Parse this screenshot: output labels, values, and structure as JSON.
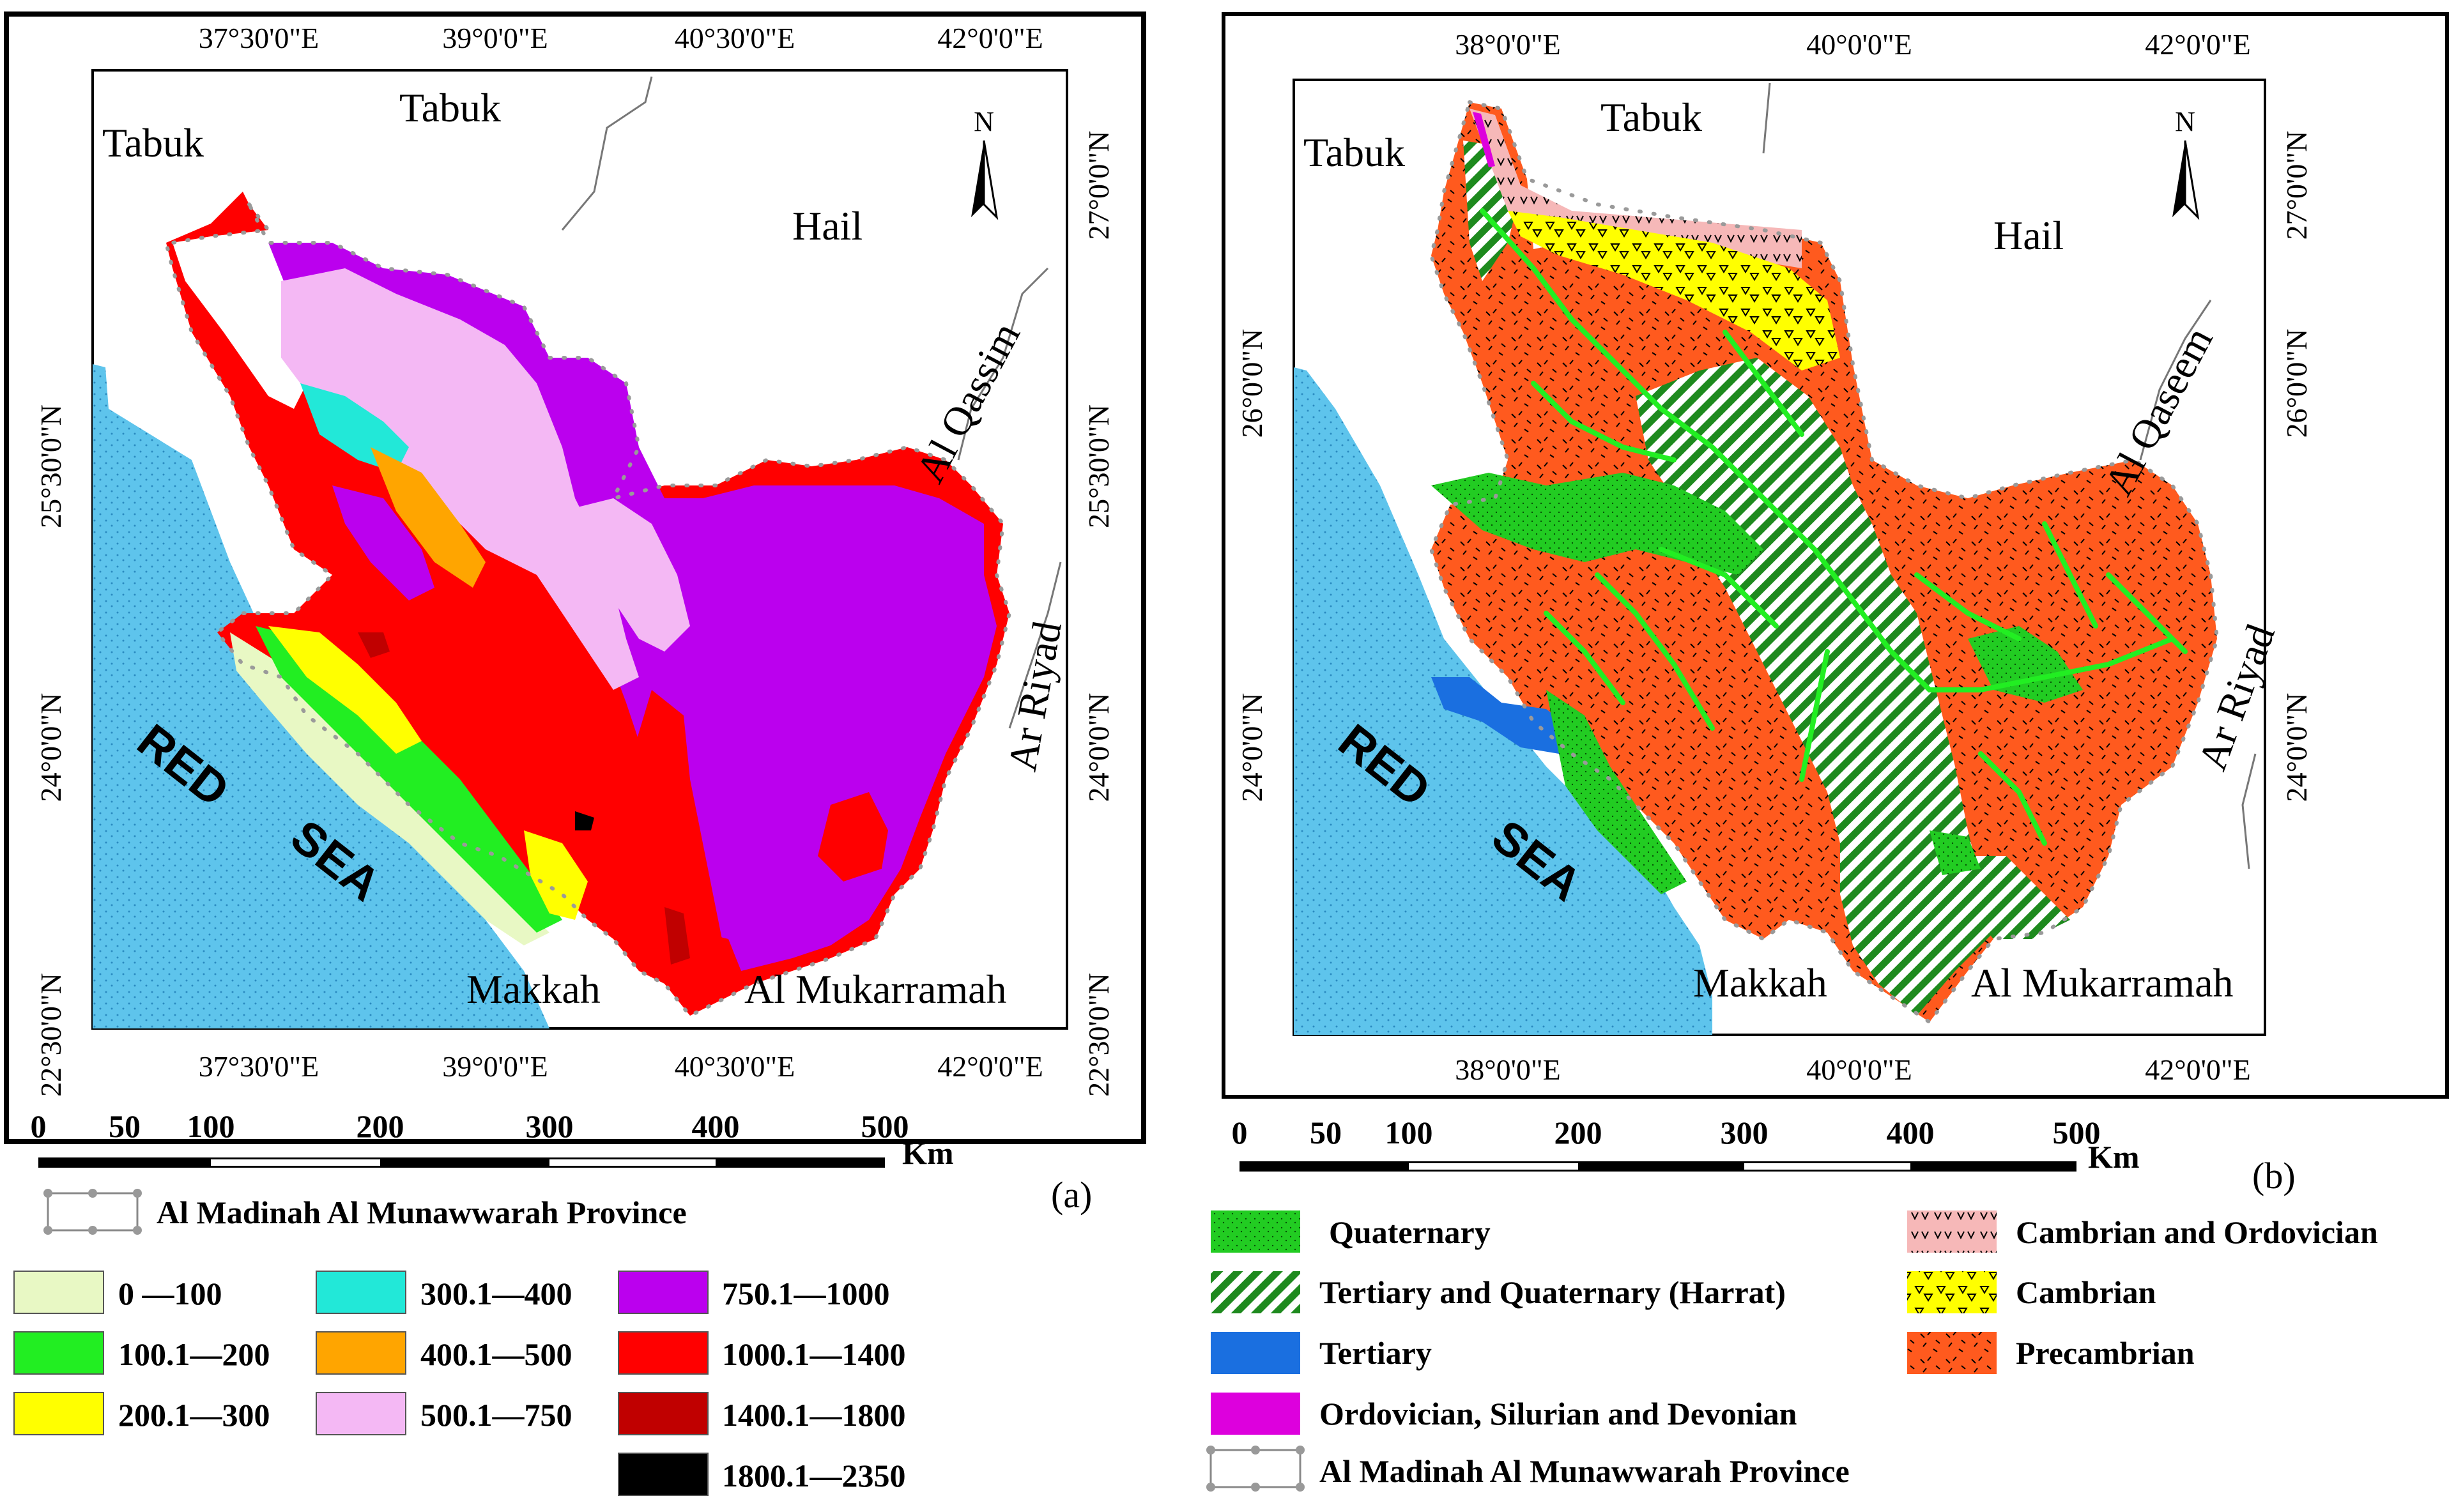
{
  "map_a": {
    "panel_label": "(a)",
    "top_lon_labels": [
      "37°30'0\"E",
      "39°0'0\"E",
      "40°30'0\"E",
      "42°0'0\"E"
    ],
    "bottom_lon_labels": [
      "37°30'0\"E",
      "39°0'0\"E",
      "40°30'0\"E",
      "42°0'0\"E"
    ],
    "left_lat_labels": [
      "25°30'0\"N",
      "24°0'0\"N",
      "22°30'0\"N"
    ],
    "right_lat_labels": [
      "27°0'0\"N",
      "25°30'0\"N",
      "24°0'0\"N",
      "22°30'0\"N"
    ],
    "north_label": "N",
    "places": {
      "tabuk_outer": "Tabuk",
      "tabuk_inner": "Tabuk",
      "hail": "Hail",
      "qassim": "Al Qassim",
      "riyad": "Ar Riyad",
      "makkah": "Makkah",
      "mukarramah": "Al Mukarramah",
      "red": "RED",
      "sea": "SEA"
    },
    "scale_ticks": [
      "0",
      "50",
      "100",
      "200",
      "300",
      "400",
      "500"
    ],
    "scale_unit": "Km",
    "province_legend": "Al Madinah Al Munawwarah Province",
    "elevation_legend": [
      {
        "label": "0 —100",
        "color": "#e8f8c4"
      },
      {
        "label": "100.1—200",
        "color": "#22ee22"
      },
      {
        "label": "200.1—300",
        "color": "#ffff00"
      },
      {
        "label": "300.1—400",
        "color": "#22e8d8"
      },
      {
        "label": "400.1—500",
        "color": "#ffa500"
      },
      {
        "label": "500.1—750",
        "color": "#f4b8f4"
      },
      {
        "label": "750.1—1000",
        "color": "#bb00ee"
      },
      {
        "label": "1000.1—1400",
        "color": "#ff0000"
      },
      {
        "label": "1400.1—1800",
        "color": "#c00000"
      },
      {
        "label": "1800.1—2350",
        "color": "#000000"
      }
    ]
  },
  "map_b": {
    "panel_label": "(b)",
    "top_lon_labels": [
      "38°0'0\"E",
      "40°0'0\"E",
      "42°0'0\"E"
    ],
    "bottom_lon_labels": [
      "38°0'0\"E",
      "40°0'0\"E",
      "42°0'0\"E"
    ],
    "left_lat_labels": [
      "26°0'0\"N",
      "24°0'0\"N"
    ],
    "right_lat_labels": [
      "27°0'0\"N",
      "26°0'0\"N",
      "24°0'0\"N"
    ],
    "north_label": "N",
    "places": {
      "tabuk_outer": "Tabuk",
      "tabuk_inner": "Tabuk",
      "hail": "Hail",
      "qaseem": "Al Qaseem",
      "riyad": "Ar Riyad",
      "makkah": "Makkah",
      "mukarramah": "Al Mukarramah",
      "red": "RED",
      "sea": "SEA"
    },
    "scale_ticks": [
      "0",
      "50",
      "100",
      "200",
      "300",
      "400",
      "500"
    ],
    "scale_unit": "Km",
    "geology_legend": [
      {
        "label": "Quaternary",
        "color": "#22cc22"
      },
      {
        "label": "Tertiary and Quaternary (Harrat)",
        "color": "#1e8a1e"
      },
      {
        "label": "Tertiary",
        "color": "#1a6fe0"
      },
      {
        "label": "Ordovician, Silurian and Devonian",
        "color": "#dd00dd"
      },
      {
        "label": "Cambrian and Ordovician",
        "color": "#f6b8b8"
      },
      {
        "label": "Cambrian",
        "color": "#ffff00"
      },
      {
        "label": "Precambrian",
        "color": "#ff5a1e"
      }
    ],
    "province_legend": "Al Madinah Al Munawwarah Province"
  }
}
